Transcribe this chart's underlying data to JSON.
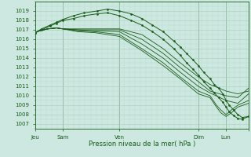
{
  "xlabel": "Pression niveau de la mer( hPa )",
  "bg_color": "#cce8e0",
  "grid_major_color": "#aaccbb",
  "grid_minor_color": "#bbddcc",
  "line_color": "#1a5c1a",
  "ylim": [
    1006.5,
    1020.0
  ],
  "yticks": [
    1007,
    1008,
    1009,
    1010,
    1011,
    1012,
    1013,
    1014,
    1015,
    1016,
    1017,
    1018,
    1019
  ],
  "xlim": [
    0.0,
    1.0
  ],
  "xtick_labels_with_pos": [
    [
      0.0,
      "Jeu"
    ],
    [
      0.13,
      "Sam"
    ],
    [
      0.395,
      "Ven"
    ],
    [
      0.765,
      "Dim"
    ],
    [
      0.895,
      "Lun"
    ],
    [
      1.0,
      ""
    ]
  ],
  "vlines": [
    0.0,
    0.13,
    0.395,
    0.765,
    0.895
  ],
  "lines": [
    {
      "x": [
        0.0,
        0.02,
        0.06,
        0.1,
        0.13,
        0.18,
        0.25,
        0.395,
        0.5,
        0.6,
        0.68,
        0.765,
        0.82,
        0.895,
        0.95,
        1.0
      ],
      "y": [
        1016.7,
        1016.9,
        1017.1,
        1017.2,
        1017.1,
        1017.1,
        1017.1,
        1017.1,
        1016.5,
        1015.0,
        1013.5,
        1012.0,
        1011.2,
        1010.5,
        1010.2,
        1010.5
      ]
    },
    {
      "x": [
        0.0,
        0.02,
        0.06,
        0.1,
        0.13,
        0.2,
        0.28,
        0.395,
        0.5,
        0.6,
        0.68,
        0.765,
        0.82,
        0.895,
        0.95,
        1.0
      ],
      "y": [
        1016.7,
        1016.9,
        1017.1,
        1017.2,
        1017.1,
        1017.0,
        1017.0,
        1017.0,
        1016.0,
        1014.5,
        1013.0,
        1011.5,
        1010.5,
        1010.0,
        1009.8,
        1010.8
      ]
    },
    {
      "x": [
        0.0,
        0.02,
        0.06,
        0.1,
        0.13,
        0.2,
        0.28,
        0.395,
        0.5,
        0.6,
        0.68,
        0.765,
        0.82,
        0.895,
        0.95,
        1.0
      ],
      "y": [
        1016.7,
        1016.9,
        1017.1,
        1017.2,
        1017.1,
        1017.0,
        1016.9,
        1016.8,
        1015.5,
        1014.0,
        1012.5,
        1011.0,
        1010.3,
        1009.5,
        1009.2,
        1010.2
      ]
    },
    {
      "x": [
        0.0,
        0.02,
        0.06,
        0.1,
        0.13,
        0.2,
        0.28,
        0.395,
        0.5,
        0.6,
        0.68,
        0.765,
        0.82,
        0.85,
        0.87,
        0.895,
        0.92,
        0.95,
        1.0
      ],
      "y": [
        1016.7,
        1016.9,
        1017.1,
        1017.2,
        1017.1,
        1016.9,
        1016.8,
        1016.5,
        1015.0,
        1013.5,
        1012.0,
        1010.5,
        1010.0,
        1009.0,
        1008.5,
        1008.0,
        1008.5,
        1009.0,
        1009.5
      ]
    },
    {
      "x": [
        0.0,
        0.02,
        0.06,
        0.1,
        0.13,
        0.2,
        0.28,
        0.395,
        0.5,
        0.6,
        0.68,
        0.765,
        0.82,
        0.85,
        0.87,
        0.895,
        0.92,
        0.95,
        1.0
      ],
      "y": [
        1016.7,
        1016.9,
        1017.1,
        1017.2,
        1017.1,
        1016.8,
        1016.7,
        1016.3,
        1014.8,
        1013.2,
        1011.8,
        1010.2,
        1009.8,
        1008.8,
        1008.2,
        1007.8,
        1008.2,
        1008.8,
        1009.2
      ]
    }
  ],
  "dotted_lines": [
    {
      "x": [
        0.0,
        0.03,
        0.07,
        0.1,
        0.13,
        0.18,
        0.23,
        0.29,
        0.34,
        0.395,
        0.45,
        0.5,
        0.55,
        0.6,
        0.65,
        0.68,
        0.71,
        0.74,
        0.765,
        0.79,
        0.82,
        0.84,
        0.86,
        0.88,
        0.895,
        0.91,
        0.93,
        0.95,
        0.97,
        1.0
      ],
      "y": [
        1016.7,
        1017.1,
        1017.5,
        1017.8,
        1018.1,
        1018.5,
        1018.8,
        1019.0,
        1019.2,
        1019.0,
        1018.7,
        1018.2,
        1017.5,
        1016.8,
        1015.8,
        1015.2,
        1014.5,
        1013.8,
        1013.2,
        1012.5,
        1011.8,
        1011.2,
        1010.8,
        1010.2,
        1009.5,
        1009.0,
        1008.5,
        1008.0,
        1007.7,
        1007.8
      ]
    },
    {
      "x": [
        0.0,
        0.03,
        0.07,
        0.1,
        0.13,
        0.18,
        0.23,
        0.29,
        0.34,
        0.395,
        0.45,
        0.5,
        0.55,
        0.6,
        0.65,
        0.68,
        0.71,
        0.74,
        0.765,
        0.79,
        0.82,
        0.84,
        0.86,
        0.88,
        0.895,
        0.91,
        0.93,
        0.95,
        0.97,
        1.0
      ],
      "y": [
        1016.7,
        1017.0,
        1017.4,
        1017.7,
        1018.0,
        1018.2,
        1018.5,
        1018.7,
        1018.8,
        1018.5,
        1018.0,
        1017.5,
        1016.8,
        1016.0,
        1015.0,
        1014.3,
        1013.5,
        1012.8,
        1012.2,
        1011.5,
        1010.8,
        1010.3,
        1009.8,
        1009.3,
        1008.8,
        1008.3,
        1007.9,
        1007.6,
        1007.5,
        1007.8
      ]
    }
  ]
}
